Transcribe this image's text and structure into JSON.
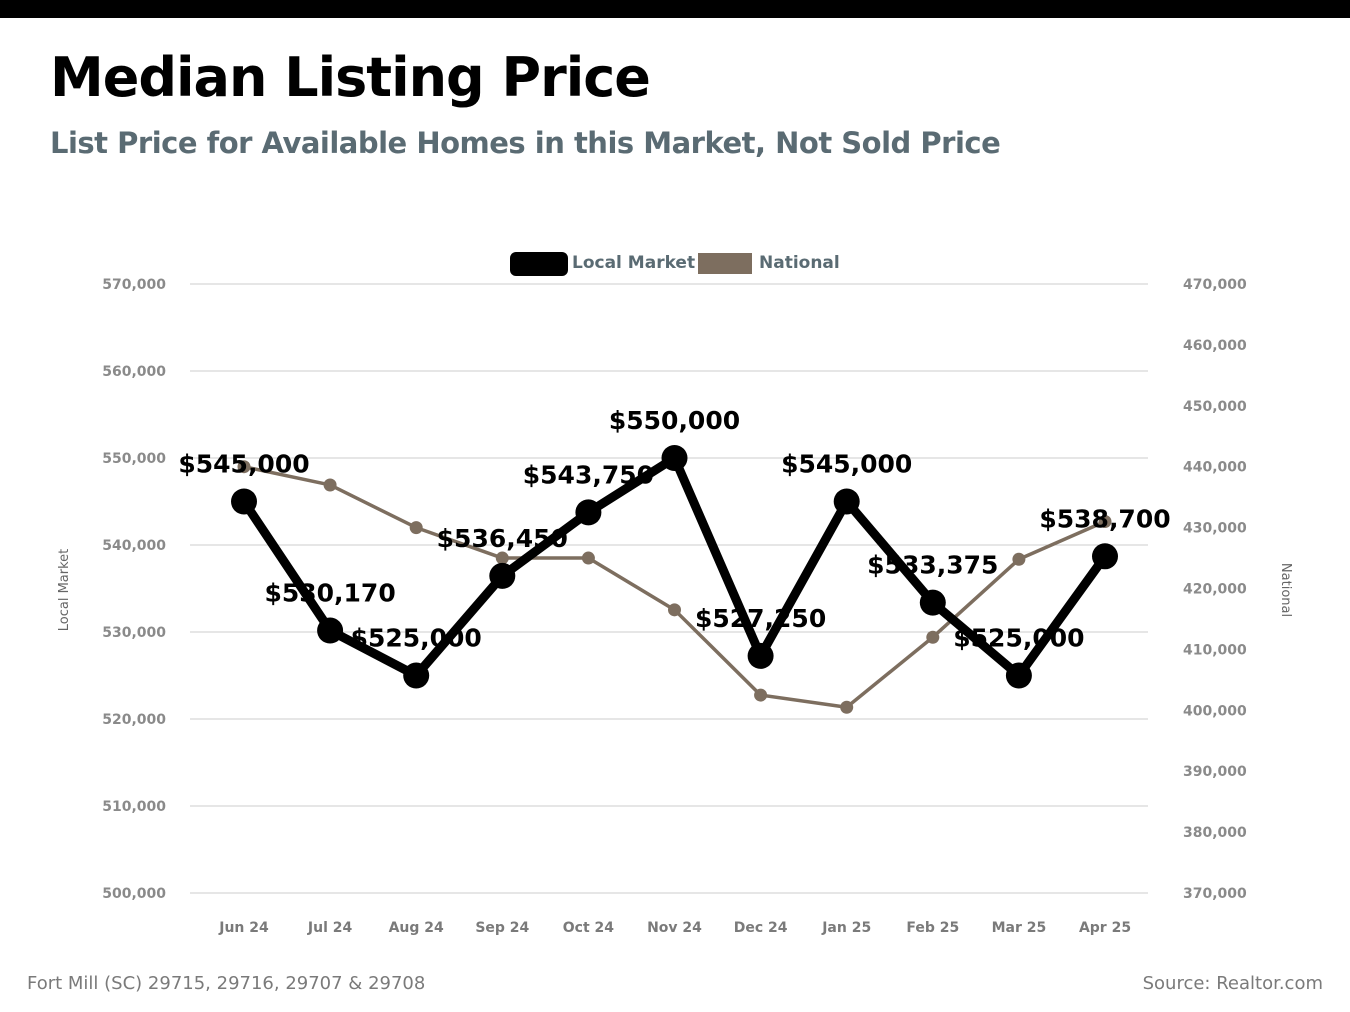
{
  "header": {
    "title": "Median Listing Price",
    "subtitle": "List Price for Available Homes in this Market, Not Sold Price"
  },
  "footer": {
    "area": "Fort Mill (SC) 29715, 29716, 29707 & 29708",
    "source": "Source: Realtor.com"
  },
  "chart_data": {
    "type": "line",
    "categories": [
      "Jun 24",
      "Jul 24",
      "Aug 24",
      "Sep 24",
      "Oct 24",
      "Nov 24",
      "Dec 24",
      "Jan 25",
      "Feb 25",
      "Mar 25",
      "Apr 25"
    ],
    "series": [
      {
        "name": "Local Market",
        "axis": "left",
        "color": "#000000",
        "values": [
          545000,
          530170,
          525000,
          536450,
          543750,
          550000,
          527250,
          545000,
          533375,
          525000,
          538700
        ],
        "labels": [
          "$545,000",
          "$530,170",
          "$525,000",
          "$536,450",
          "$543,750",
          "$550,000",
          "$527,250",
          "$545,000",
          "$533,375",
          "$525,000",
          "$538,700"
        ]
      },
      {
        "name": "National",
        "axis": "right",
        "color": "#7d6e5f",
        "values": [
          440000,
          437000,
          430000,
          425000,
          425000,
          416500,
          402500,
          400500,
          412000,
          424800,
          431000
        ]
      }
    ],
    "y_left": {
      "label": "Local Market",
      "min": 500000,
      "max": 570000,
      "ticks": [
        500000,
        510000,
        520000,
        530000,
        540000,
        550000,
        560000,
        570000
      ],
      "tick_labels": [
        "500,000",
        "510,000",
        "520,000",
        "530,000",
        "540,000",
        "550,000",
        "560,000",
        "570,000"
      ]
    },
    "y_right": {
      "label": "National",
      "min": 370000,
      "max": 470000,
      "ticks": [
        370000,
        380000,
        390000,
        400000,
        410000,
        420000,
        430000,
        440000,
        450000,
        460000,
        470000
      ],
      "tick_labels": [
        "370,000",
        "380,000",
        "390,000",
        "400,000",
        "410,000",
        "420,000",
        "430,000",
        "440,000",
        "450,000",
        "460,000",
        "470,000"
      ]
    },
    "grid": true,
    "legend_position": "top-center",
    "colors": {
      "grid": "#cccccc",
      "tick_text": "#8a8a8a",
      "category_text": "#7a7a7a",
      "legend_text": "#5a6b73"
    }
  }
}
